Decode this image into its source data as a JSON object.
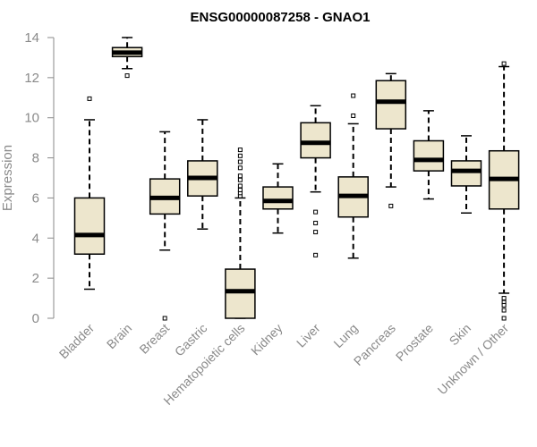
{
  "chart_data": {
    "type": "boxplot",
    "title": "ENSG00000087258 - GNAO1",
    "xlabel": "",
    "ylabel": "Expression",
    "ylim": [
      0,
      14
    ],
    "yticks": [
      "0",
      "2",
      "4",
      "6",
      "8",
      "10",
      "12",
      "14"
    ],
    "box_fill": "#ede6cd",
    "median_color": "#000000",
    "axis_color": "#8a8a8a",
    "categories": [
      "Bladder",
      "Brain",
      "Breast",
      "Gastric",
      "Hematopoietic cells",
      "Kidney",
      "Liver",
      "Lung",
      "Pancreas",
      "Prostate",
      "Skin",
      "Unknown / Other"
    ],
    "boxes": [
      {
        "category": "Bladder",
        "whisker_low": 1.45,
        "q1": 3.2,
        "median": 4.15,
        "q3": 6.0,
        "whisker_high": 9.9,
        "outliers": [
          10.95
        ]
      },
      {
        "category": "Brain",
        "whisker_low": 12.45,
        "q1": 13.05,
        "median": 13.25,
        "q3": 13.5,
        "whisker_high": 14.0,
        "outliers": [
          12.1
        ]
      },
      {
        "category": "Breast",
        "whisker_low": 3.4,
        "q1": 5.2,
        "median": 6.0,
        "q3": 6.95,
        "whisker_high": 9.3,
        "outliers": [
          0.0
        ]
      },
      {
        "category": "Gastric",
        "whisker_low": 4.45,
        "q1": 6.1,
        "median": 7.0,
        "q3": 7.85,
        "whisker_high": 9.9,
        "outliers": []
      },
      {
        "category": "Hematopoietic cells",
        "whisker_low": 0.0,
        "q1": 0.0,
        "median": 1.35,
        "q3": 2.45,
        "whisker_high": 6.0,
        "outliers": [
          6.1,
          6.25,
          6.4,
          6.6,
          6.9,
          7.1,
          7.5,
          7.8,
          8.1,
          8.4
        ]
      },
      {
        "category": "Kidney",
        "whisker_low": 4.25,
        "q1": 5.45,
        "median": 5.85,
        "q3": 6.55,
        "whisker_high": 7.7,
        "outliers": []
      },
      {
        "category": "Liver",
        "whisker_low": 6.3,
        "q1": 8.0,
        "median": 8.75,
        "q3": 9.75,
        "whisker_high": 10.6,
        "outliers": [
          5.3,
          4.75,
          4.3,
          3.15
        ]
      },
      {
        "category": "Lung",
        "whisker_low": 3.0,
        "q1": 5.05,
        "median": 6.1,
        "q3": 7.05,
        "whisker_high": 9.7,
        "outliers": [
          10.1,
          11.1
        ]
      },
      {
        "category": "Pancreas",
        "whisker_low": 6.55,
        "q1": 9.45,
        "median": 10.8,
        "q3": 11.85,
        "whisker_high": 12.2,
        "outliers": [
          5.6
        ]
      },
      {
        "category": "Prostate",
        "whisker_low": 5.95,
        "q1": 7.35,
        "median": 7.9,
        "q3": 8.85,
        "whisker_high": 10.35,
        "outliers": []
      },
      {
        "category": "Skin",
        "whisker_low": 5.25,
        "q1": 6.6,
        "median": 7.35,
        "q3": 7.85,
        "whisker_high": 9.1,
        "outliers": []
      },
      {
        "category": "Unknown / Other",
        "whisker_low": 1.25,
        "q1": 5.45,
        "median": 6.95,
        "q3": 8.35,
        "whisker_high": 12.55,
        "outliers": [
          12.7,
          1.0,
          0.8,
          0.65,
          0.4,
          0.0
        ]
      }
    ]
  }
}
